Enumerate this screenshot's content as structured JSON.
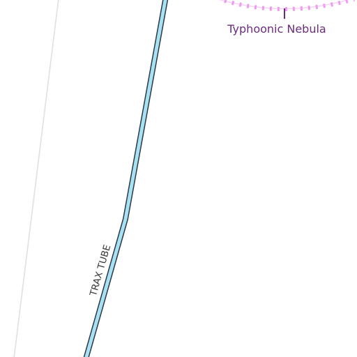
{
  "map": {
    "route": {
      "label": "TRAX TUBE",
      "fill_color": "#a7e1f3",
      "outline_color": "#2b3a45",
      "label_color": "#3a3a3a"
    },
    "boundary_line": {
      "color": "#e0e0e0"
    },
    "nebula": {
      "label": "Typhoonic Nebula",
      "label_color": "#6b2c7c",
      "tick_color": "#ee9bf0",
      "marker_color": "#6b2c7c"
    }
  }
}
